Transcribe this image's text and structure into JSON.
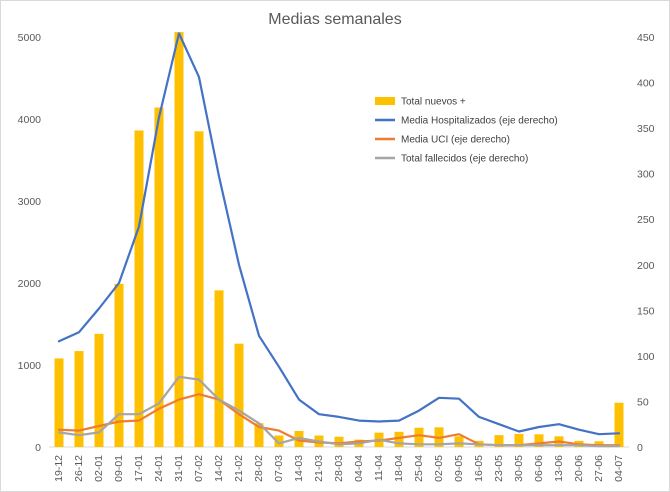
{
  "chart_data": {
    "type": "bar+line",
    "title": "Medias semanales",
    "categories": [
      "19-12",
      "26-12",
      "02-01",
      "09-01",
      "17-01",
      "24-01",
      "31-01",
      "07-02",
      "14-02",
      "21-02",
      "28-02",
      "07-03",
      "14-03",
      "21-03",
      "28-03",
      "04-04",
      "11-04",
      "18-04",
      "25-04",
      "02-05",
      "09-05",
      "16-05",
      "23-05",
      "30-05",
      "06-06",
      "13-06",
      "20-06",
      "27-06",
      "04-07"
    ],
    "y_left": {
      "min": 0,
      "max": 5000,
      "step": 1000,
      "ticks": [
        "0",
        "1000",
        "2000",
        "3000",
        "4000",
        "5000"
      ]
    },
    "y_right": {
      "min": 0,
      "max": 450,
      "step": 50,
      "ticks": [
        "0",
        "50",
        "100",
        "150",
        "200",
        "250",
        "300",
        "350",
        "400",
        "450"
      ]
    },
    "grid": false,
    "legend_position": "top-right-inside",
    "series": [
      {
        "name": "Total nuevos +",
        "kind": "bar",
        "axis": "left",
        "color": "#FFC000",
        "values": [
          1080,
          1170,
          1380,
          1990,
          3860,
          4140,
          5060,
          3850,
          1910,
          1260,
          290,
          140,
          195,
          140,
          125,
          90,
          175,
          185,
          235,
          240,
          130,
          75,
          145,
          160,
          155,
          130,
          75,
          70,
          540
        ]
      },
      {
        "name": "Media Hospitalizados (eje derecho)",
        "kind": "line",
        "axis": "right",
        "color": "#4472C4",
        "values": [
          116,
          126,
          152,
          180,
          242,
          362,
          454,
          406,
          297,
          200,
          122,
          88,
          52,
          36,
          33,
          29,
          28,
          29,
          40,
          54,
          53,
          33,
          25,
          17,
          22,
          25,
          19,
          14,
          15
        ]
      },
      {
        "name": "Media UCI (eje derecho)",
        "kind": "line",
        "axis": "right",
        "color": "#ED7D31",
        "values": [
          19,
          18,
          23,
          28,
          29,
          42,
          52,
          58,
          52,
          36,
          22,
          18,
          7,
          5,
          4,
          6,
          7,
          10,
          13,
          10,
          14,
          3,
          2,
          2,
          4,
          6,
          3,
          2,
          2
        ]
      },
      {
        "name": "Total fallecidos (eje derecho)",
        "kind": "line",
        "axis": "right",
        "color": "#A5A5A5",
        "values": [
          16,
          13,
          16,
          36,
          36,
          48,
          77,
          74,
          52,
          40,
          26,
          4,
          10,
          6,
          3,
          4,
          8,
          4,
          3,
          3,
          4,
          3,
          2,
          2,
          2,
          2,
          2,
          1,
          1
        ]
      }
    ]
  }
}
